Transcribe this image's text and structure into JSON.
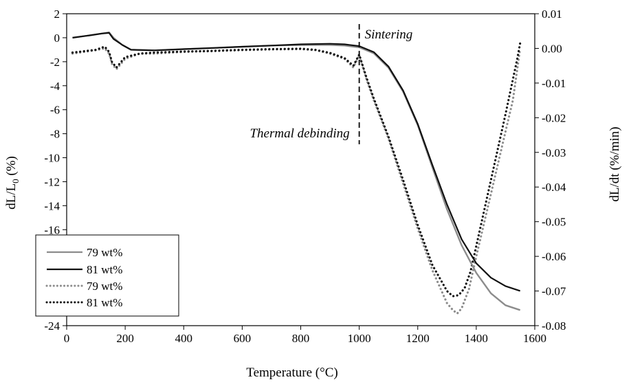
{
  "chart_data": {
    "type": "line",
    "title": "",
    "xlabel": "Temperature (°C)",
    "ylabel_left": "dL/L0 (%)",
    "ylabel_left_main": "dL/L",
    "ylabel_left_sub": "0",
    "ylabel_left_tail": " (%)",
    "ylabel_right": "dL/dt (%/min)",
    "xlim": [
      0,
      1600
    ],
    "ylim_left": [
      -24,
      2
    ],
    "ylim_right": [
      -0.08,
      0.01
    ],
    "xticks": [
      "0",
      "200",
      "400",
      "600",
      "800",
      "1000",
      "1200",
      "1400",
      "1600"
    ],
    "yticks_left": [
      "2",
      "0",
      "-2",
      "-4",
      "-6",
      "-8",
      "-10",
      "-12",
      "-14",
      "-16",
      "-18",
      "-20",
      "-22",
      "-24"
    ],
    "yticks_right": [
      "0.01",
      "0.00",
      "-0.01",
      "-0.02",
      "-0.03",
      "-0.04",
      "-0.05",
      "-0.06",
      "-0.07",
      "-0.08"
    ],
    "grid": false,
    "legend_position": "bottom-left",
    "annotations": {
      "divider_x": 1000,
      "sintering": "Sintering",
      "thermal_debinding": "Thermal debinding"
    },
    "colors": {
      "gray": "#8c8c8c",
      "black": "#111111"
    },
    "series": [
      {
        "name": "79 wt%",
        "axis": "left",
        "style": "solid",
        "color": "#8c8c8c",
        "x": [
          20,
          80,
          120,
          145,
          160,
          190,
          220,
          300,
          400,
          500,
          600,
          700,
          800,
          900,
          950,
          1000,
          1050,
          1100,
          1150,
          1200,
          1250,
          1300,
          1350,
          1400,
          1450,
          1500,
          1550
        ],
        "y": [
          0,
          0.2,
          0.35,
          0.45,
          0,
          -0.6,
          -1.0,
          -1.05,
          -0.95,
          -0.85,
          -0.75,
          -0.65,
          -0.6,
          -0.6,
          -0.65,
          -0.8,
          -1.3,
          -2.5,
          -4.5,
          -7.3,
          -10.8,
          -14.3,
          -17.3,
          -19.6,
          -21.3,
          -22.3,
          -22.7
        ]
      },
      {
        "name": "81 wt%",
        "axis": "left",
        "style": "solid",
        "color": "#111111",
        "x": [
          20,
          80,
          120,
          145,
          160,
          190,
          220,
          300,
          400,
          500,
          600,
          700,
          800,
          900,
          950,
          1000,
          1050,
          1100,
          1150,
          1200,
          1250,
          1300,
          1350,
          1400,
          1450,
          1500,
          1550
        ],
        "y": [
          0,
          0.2,
          0.35,
          0.4,
          -0.1,
          -0.6,
          -1.0,
          -1.05,
          -0.95,
          -0.85,
          -0.75,
          -0.65,
          -0.55,
          -0.5,
          -0.55,
          -0.7,
          -1.2,
          -2.4,
          -4.4,
          -7.2,
          -10.6,
          -13.9,
          -16.8,
          -18.8,
          -20.0,
          -20.7,
          -21.1
        ]
      },
      {
        "name": "79 wt%",
        "axis": "right",
        "style": "dotted",
        "color": "#8c8c8c",
        "x": [
          20,
          60,
          100,
          130,
          145,
          155,
          170,
          200,
          250,
          300,
          400,
          500,
          600,
          700,
          800,
          850,
          900,
          950,
          980,
          1000,
          1025,
          1050,
          1100,
          1150,
          1200,
          1250,
          1300,
          1320,
          1335,
          1350,
          1375,
          1400,
          1450,
          1500,
          1525,
          1540,
          1550
        ],
        "y": [
          -0.0015,
          -0.001,
          -0.0005,
          0.0,
          -0.0015,
          -0.0045,
          -0.006,
          -0.003,
          -0.0015,
          -0.0015,
          -0.001,
          -0.0008,
          -0.0005,
          -0.0003,
          -0.0002,
          -0.0005,
          -0.0015,
          -0.003,
          -0.0055,
          -0.002,
          -0.009,
          -0.015,
          -0.026,
          -0.039,
          -0.052,
          -0.064,
          -0.0735,
          -0.0755,
          -0.0765,
          -0.075,
          -0.0695,
          -0.06,
          -0.042,
          -0.024,
          -0.015,
          -0.006,
          0.0
        ]
      },
      {
        "name": "81 wt%",
        "axis": "right",
        "style": "dotted",
        "color": "#111111",
        "x": [
          20,
          60,
          100,
          130,
          145,
          155,
          170,
          200,
          250,
          300,
          400,
          500,
          600,
          700,
          800,
          850,
          900,
          950,
          980,
          1000,
          1025,
          1050,
          1100,
          1150,
          1200,
          1250,
          1300,
          1320,
          1340,
          1360,
          1380,
          1400,
          1450,
          1500,
          1525,
          1540,
          1550
        ],
        "y": [
          -0.0012,
          -0.0008,
          -0.0004,
          0.0005,
          -0.001,
          -0.004,
          -0.0055,
          -0.0025,
          -0.0015,
          -0.0012,
          -0.0009,
          -0.0007,
          -0.0004,
          -0.0002,
          -0.0001,
          -0.0004,
          -0.0013,
          -0.0028,
          -0.005,
          -0.0018,
          -0.0085,
          -0.0145,
          -0.0255,
          -0.038,
          -0.051,
          -0.0625,
          -0.07,
          -0.0715,
          -0.0712,
          -0.0692,
          -0.0645,
          -0.057,
          -0.038,
          -0.019,
          -0.009,
          -0.003,
          0.0015
        ]
      }
    ]
  }
}
